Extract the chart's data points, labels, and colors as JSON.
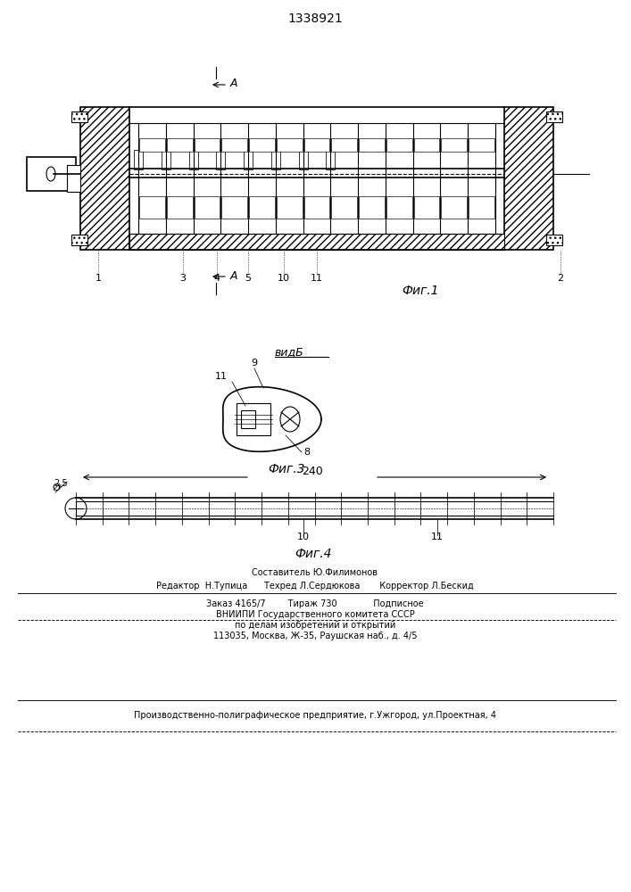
{
  "title": "1338921",
  "bg_color": "#ffffff",
  "line_color": "#000000",
  "hatch_color": "#555555",
  "fig1_label": "Фиг.1",
  "fig3_label": "Фиг.3",
  "fig4_label": "Фиг.4",
  "view_b_label": "видБ",
  "footer_line1": "Составитель Ю.Филимонов",
  "footer_line2": "Редактор  Н.Тупица      Техред Л.Сердюкова       Корректор Л.Бескид",
  "footer_line3": "Заказ 4165/7        Тираж 730             Подписное",
  "footer_line4": "ВНИИПИ Государственного комитета СССР",
  "footer_line5": "по делам изобретений и открытий",
  "footer_line6": "113035, Москва, Ж-35, Раушская наб., д. 4/5",
  "footer_line7": "Производственно-полиграфическое предприятие, г.Ужгород, ул.Проектная, 4"
}
